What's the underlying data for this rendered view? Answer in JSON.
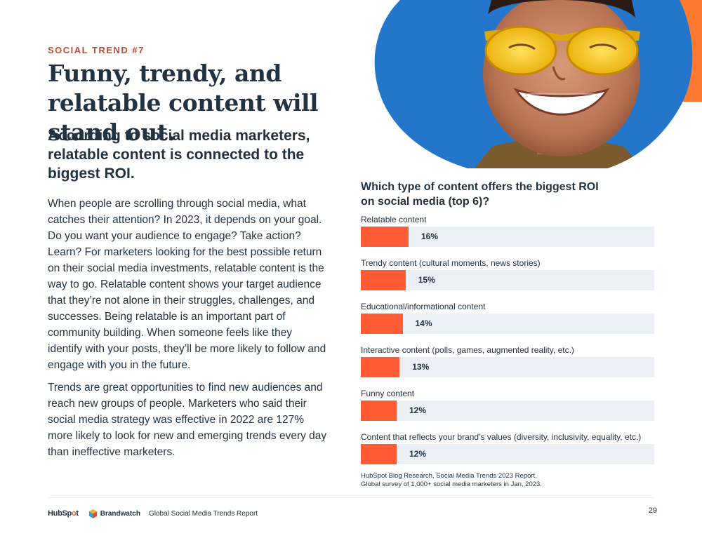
{
  "eyebrow": "SOCIAL TREND #7",
  "headline": "Funny, trendy, and relatable content will stand out.",
  "subheading": "According to social media marketers, relatable content is connected to the biggest ROI.",
  "body": [
    "When people are scrolling through social media, what catches their attention? In 2023, it depends on your goal. Do you want your audience to engage? Take action? Learn? For marketers looking for the best possible return on their social media investments, relatable content is the way to go. Relatable content shows your target audience that they’re not alone in their struggles, challenges, and successes. Being relatable is an important part of community building. When someone feels like they identify with your posts, they’ll be more likely to follow and engage with you in the future.",
    "Trends are great opportunities to find new audiences and reach new groups of people. Marketers who said their social media strategy was effective in 2022 are 127% more likely to look for new and emerging trends every day than ineffective marketers."
  ],
  "photo_alt": "smiling-person-yellow-sunglasses-photo",
  "chart_data": {
    "type": "bar",
    "orientation": "horizontal",
    "title": "Which type of content offers the biggest ROI on social media (top 6)?",
    "categories": [
      "Relatable content",
      "Trendy content (cultural moments, news stories)",
      "Educational/informational content",
      "Interactive content (polls, games, augmented reality, etc.)",
      "Funny content",
      "Content that reflects your brand’s values (diversity, inclusivity, equality, etc.)"
    ],
    "values": [
      16,
      15,
      14,
      13,
      12,
      12
    ],
    "value_labels": [
      "16%",
      "15%",
      "14%",
      "13%",
      "12%",
      "12%"
    ],
    "unit": "%",
    "xlim": [
      0,
      100
    ],
    "grid": false,
    "bar_color": "#ff5c35",
    "track_color": "#eaf0f6"
  },
  "source": {
    "line1": "HubSpot Blog Research, Social Media Trends 2023 Report.",
    "line2": "Global survey of 1,000+ social media marketers in Jan, 2023."
  },
  "footer": {
    "hubspot_logo": "HubSpot",
    "brandwatch_logo": "Brandwatch",
    "report_title": "Global Social Media Trends Report",
    "page_number": "29"
  },
  "colors": {
    "accent": "#ff5c35",
    "eyebrow": "#c24a2e",
    "text": "#213343",
    "photo_background": "#1f6fc2"
  }
}
